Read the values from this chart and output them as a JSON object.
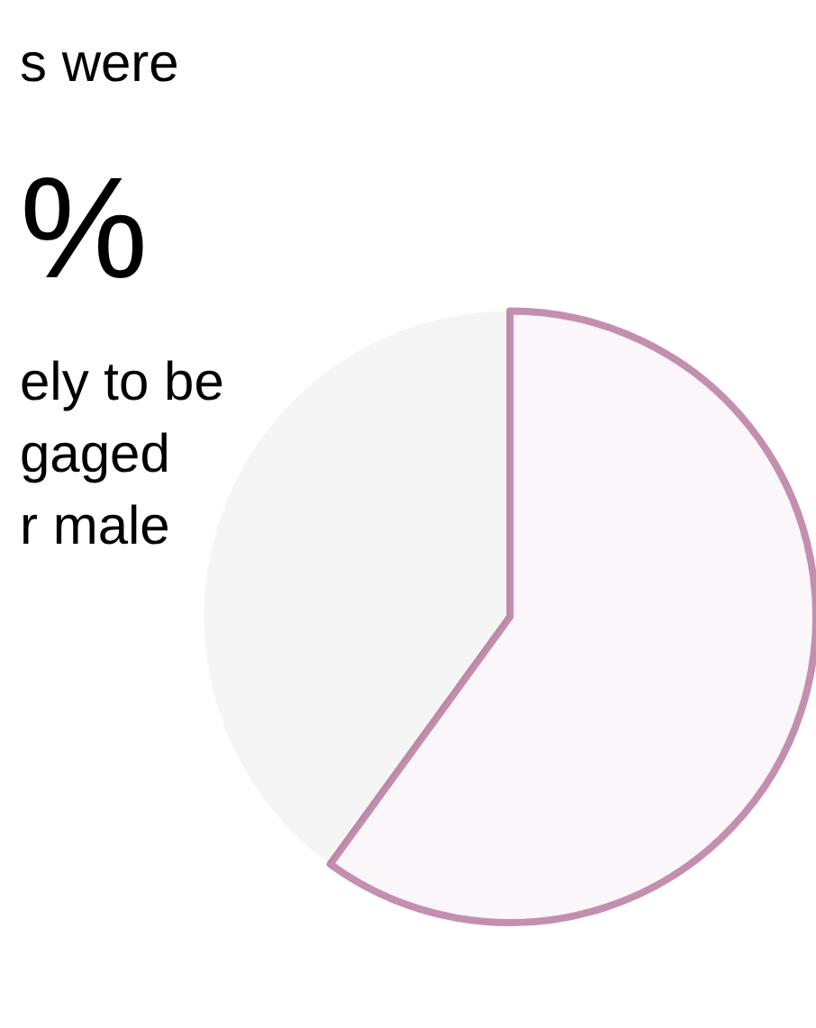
{
  "chart_data": {
    "type": "pie",
    "categories": [
      null,
      null
    ],
    "values": [
      60,
      40
    ],
    "colors": [
      "#c48fae",
      null
    ],
    "annotations": [
      "s were",
      "%",
      "ely to be",
      "gaged",
      "r male"
    ],
    "legend": false
  }
}
